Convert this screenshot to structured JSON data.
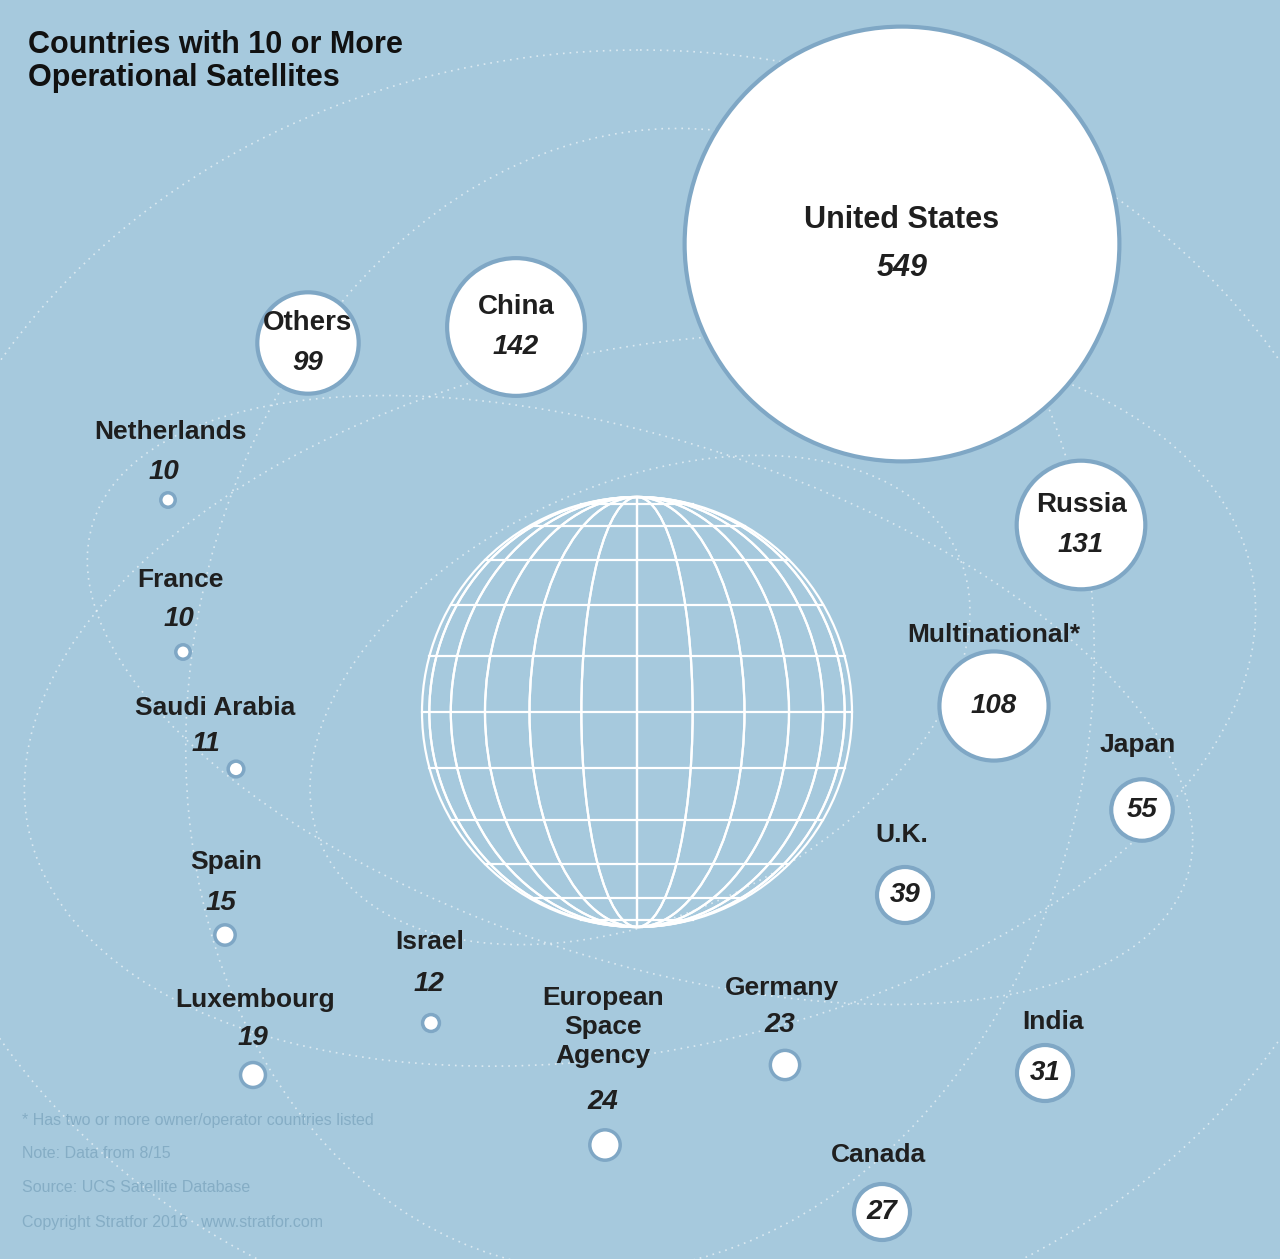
{
  "chart_data": {
    "type": "bubble",
    "title": "Countries with 10 or More Operational Satellites",
    "categories": [
      "United States",
      "China",
      "Russia",
      "Multinational*",
      "Others",
      "Japan",
      "U.K.",
      "India",
      "Canada",
      "European Space Agency",
      "Germany",
      "Luxembourg",
      "Spain",
      "Israel",
      "Saudi Arabia",
      "France",
      "Netherlands"
    ],
    "values": [
      549,
      142,
      131,
      108,
      99,
      55,
      39,
      31,
      27,
      24,
      23,
      19,
      15,
      12,
      11,
      10,
      10
    ],
    "color": "#ffffff",
    "data_labels": true,
    "tick_labels": false,
    "notes": [
      "* Has two or more owner/operator countries listed",
      "Note: Data from 8/15",
      "Source: UCS Satellite Database",
      "Copyright Stratfor 2016   www.stratfor.com"
    ]
  }
}
